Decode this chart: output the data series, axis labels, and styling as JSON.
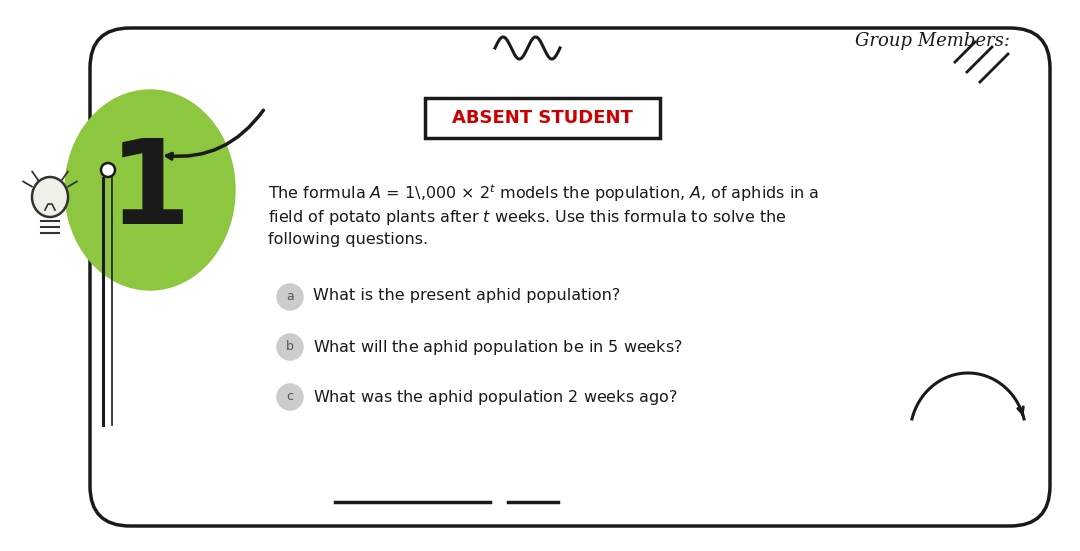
{
  "background_color": "#ffffff",
  "border_color": "#1a1a1a",
  "title_text": "Group Members:",
  "title_color": "#1a1a1a",
  "absent_label": "ABSENT STUDENT",
  "absent_color": "#cc0000",
  "absent_box_color": "#1a1a1a",
  "number": "1",
  "number_color": "#1a1a1a",
  "blob_color": "#8dc63f",
  "formula_line": "The formula $\\mathit{A}$ = 1\\,000 × $2^{\\mathit{t}}$ models the population, $\\mathit{A}$, of aphids in a",
  "formula_line2": "field of potato plants after $\\mathit{t}$ weeks. Use this formula to solve the",
  "formula_line3": "following questions.",
  "q_a": "What is the present aphid population?",
  "q_b": "What will the aphid population be in $\\mathsf{5}$ weeks?",
  "q_c": "What was the aphid population $\\mathsf{2}$ weeks ago?",
  "label_a": "a",
  "label_b": "b",
  "label_c": "c",
  "circle_color": "#cccccc",
  "text_color": "#1a1a1a",
  "fig_width": 10.8,
  "fig_height": 5.51
}
